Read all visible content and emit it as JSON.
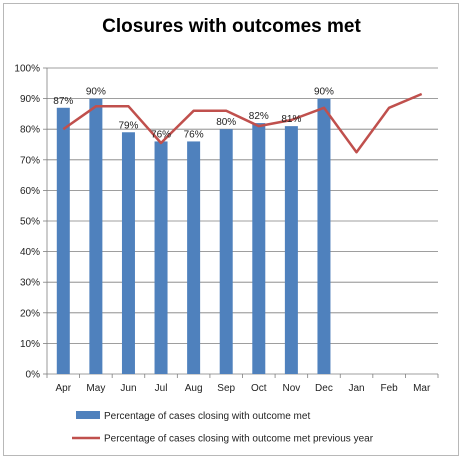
{
  "chart_data": {
    "type": "bar",
    "title": "Closures with outcomes met",
    "categories": [
      "Apr",
      "May",
      "Jun",
      "Jul",
      "Aug",
      "Sep",
      "Oct",
      "Nov",
      "Dec",
      "Jan",
      "Feb",
      "Mar"
    ],
    "y_ticks": [
      "0%",
      "10%",
      "20%",
      "30%",
      "40%",
      "50%",
      "60%",
      "70%",
      "80%",
      "90%",
      "100%"
    ],
    "ylim": [
      0,
      100
    ],
    "grid": true,
    "legend_position": "bottom",
    "series": [
      {
        "name": "Percentage of cases closing with outcome met",
        "kind": "bar",
        "color": "#4f81bd",
        "values": [
          87,
          90,
          79,
          76,
          76,
          80,
          82,
          81,
          90,
          null,
          null,
          null
        ],
        "labels": [
          "87%",
          "90%",
          "79%",
          "76%",
          "76%",
          "80%",
          "82%",
          "81%",
          "90%",
          "",
          "",
          ""
        ]
      },
      {
        "name": "Percentage of cases closing with outcome met previous year",
        "kind": "line",
        "color": "#c0504d",
        "values": [
          80,
          87.5,
          87.5,
          75.5,
          86,
          86,
          81,
          83,
          87,
          72.5,
          87,
          91.5
        ]
      }
    ]
  }
}
